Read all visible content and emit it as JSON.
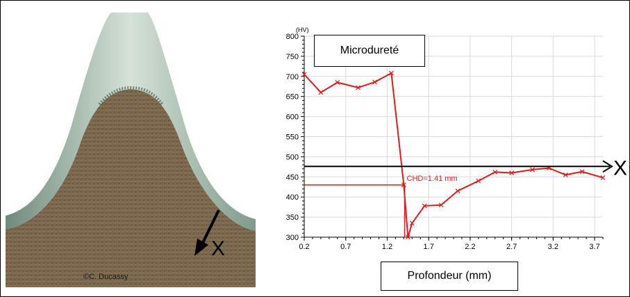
{
  "photo": {
    "credit": "©C. Ducassy",
    "arrow_label": "X"
  },
  "chart_data": {
    "type": "line",
    "title": "Microdureté",
    "xlabel": "Profondeur (mm)",
    "ylabel": "(HV)",
    "xlim": [
      0.2,
      3.8
    ],
    "ylim": [
      300,
      800
    ],
    "x_ticks": [
      "0.2",
      "0.7",
      "1.2",
      "1.7",
      "2.2",
      "2.7",
      "3.2",
      "3.7"
    ],
    "y_ticks": [
      "300",
      "350",
      "400",
      "450",
      "500",
      "550",
      "600",
      "650",
      "700",
      "750",
      "800"
    ],
    "grid": true,
    "series": [
      {
        "color": "#e81818",
        "x": [
          0.2,
          0.4,
          0.6,
          0.85,
          1.05,
          1.25,
          1.4,
          1.45,
          1.5,
          1.65,
          1.85,
          2.05,
          2.3,
          2.5,
          2.7,
          2.95,
          3.15,
          3.35,
          3.55,
          3.8
        ],
        "y": [
          705,
          660,
          685,
          672,
          686,
          708,
          430,
          300,
          335,
          378,
          380,
          415,
          440,
          462,
          460,
          468,
          472,
          455,
          463,
          448
        ]
      }
    ],
    "annotations": {
      "chd_label": "CHD=1.41 mm",
      "chd_x": 1.41,
      "chd_y": 430,
      "threshold_y": 476,
      "threshold_label": "X"
    }
  }
}
